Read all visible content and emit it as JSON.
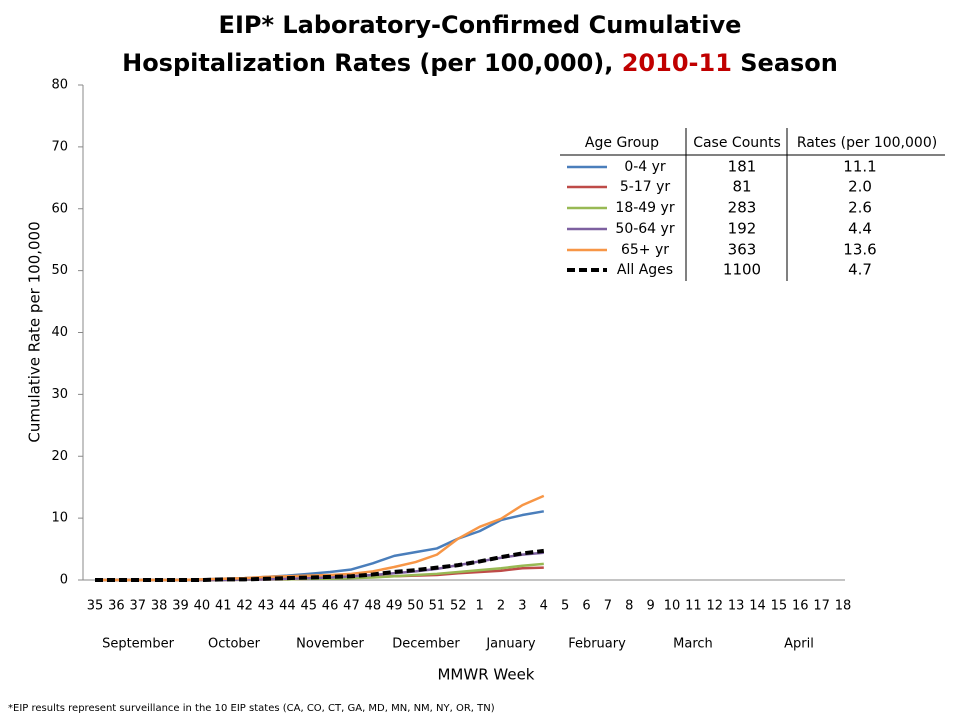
{
  "chart_data": {
    "type": "line",
    "title": [
      "EIP* Laboratory-Confirmed Cumulative",
      "Hospitalization Rates (per 100,000),",
      "2010-11",
      "Season"
    ],
    "title_highlight_color": "#c00000",
    "y_label": "Cumulative Rate per 100,000",
    "x_label": "MMWR Week",
    "footnote": "*EIP results represent surveillance in the 10 EIP states (CA, CO, CT, GA, MD, MN, NM, NY, OR, TN)",
    "categories": [
      "35",
      "36",
      "37",
      "38",
      "39",
      "40",
      "41",
      "42",
      "43",
      "44",
      "45",
      "46",
      "47",
      "48",
      "49",
      "50",
      "51",
      "52",
      "1",
      "2",
      "3",
      "4",
      "5",
      "6",
      "7",
      "8",
      "9",
      "10",
      "11",
      "12",
      "13",
      "14",
      "15",
      "16",
      "17",
      "18"
    ],
    "months": [
      "September",
      "October",
      "November",
      "December",
      "January",
      "February",
      "March",
      "April"
    ],
    "ylim": [
      0,
      80
    ],
    "yticks": [
      0,
      10,
      20,
      30,
      40,
      50,
      60,
      70,
      80
    ],
    "series": [
      {
        "name": "0-4 yr",
        "color": "#4a7ebb",
        "dashed": false,
        "values": [
          0,
          0,
          0,
          0,
          0,
          0.1,
          0.2,
          0.3,
          0.5,
          0.7,
          1.0,
          1.3,
          1.7,
          2.7,
          3.9,
          4.5,
          5.1,
          6.7,
          7.9,
          9.7,
          10.5,
          11.1,
          null,
          null,
          null,
          null,
          null,
          null,
          null,
          null,
          null,
          null,
          null,
          null,
          null,
          null
        ]
      },
      {
        "name": "5-17 yr",
        "color": "#be4b48",
        "dashed": false,
        "values": [
          0,
          0,
          0,
          0,
          0,
          0,
          0,
          0.05,
          0.1,
          0.1,
          0.2,
          0.3,
          0.4,
          0.5,
          0.6,
          0.7,
          0.8,
          1.1,
          1.3,
          1.5,
          1.9,
          2.0,
          null,
          null,
          null,
          null,
          null,
          null,
          null,
          null,
          null,
          null,
          null,
          null,
          null,
          null
        ]
      },
      {
        "name": "18-49 yr",
        "color": "#98b954",
        "dashed": false,
        "values": [
          0,
          0,
          0,
          0,
          0,
          0,
          0,
          0.05,
          0.1,
          0.1,
          0.2,
          0.2,
          0.3,
          0.4,
          0.6,
          0.8,
          1.0,
          1.3,
          1.6,
          1.9,
          2.3,
          2.6,
          null,
          null,
          null,
          null,
          null,
          null,
          null,
          null,
          null,
          null,
          null,
          null,
          null,
          null
        ]
      },
      {
        "name": "50-64 yr",
        "color": "#7d60a0",
        "dashed": false,
        "values": [
          0,
          0,
          0,
          0,
          0,
          0,
          0,
          0.1,
          0.1,
          0.2,
          0.3,
          0.4,
          0.6,
          0.8,
          1.1,
          1.4,
          1.8,
          2.4,
          3.0,
          3.6,
          4.1,
          4.4,
          null,
          null,
          null,
          null,
          null,
          null,
          null,
          null,
          null,
          null,
          null,
          null,
          null,
          null
        ]
      },
      {
        "name": "65+ yr",
        "color": "#f79646",
        "dashed": false,
        "values": [
          0,
          0,
          0,
          0,
          0,
          0.1,
          0.2,
          0.3,
          0.5,
          0.6,
          0.7,
          0.8,
          1.0,
          1.4,
          2.1,
          2.9,
          4.1,
          6.7,
          8.6,
          9.9,
          12.1,
          13.6,
          null,
          null,
          null,
          null,
          null,
          null,
          null,
          null,
          null,
          null,
          null,
          null,
          null,
          null
        ]
      },
      {
        "name": "All Ages",
        "color": "#000000",
        "dashed": true,
        "values": [
          0,
          0,
          0,
          0,
          0,
          0,
          0.1,
          0.1,
          0.2,
          0.3,
          0.4,
          0.5,
          0.6,
          0.9,
          1.3,
          1.6,
          2.0,
          2.4,
          3.0,
          3.7,
          4.3,
          4.7,
          null,
          null,
          null,
          null,
          null,
          null,
          null,
          null,
          null,
          null,
          null,
          null,
          null,
          null
        ]
      }
    ],
    "legend_table": {
      "headers": [
        "Age Group",
        "Case Counts",
        "Rates (per 100,000)"
      ],
      "rows": [
        [
          "181",
          "11.1"
        ],
        [
          "81",
          "2.0"
        ],
        [
          "283",
          "2.6"
        ],
        [
          "192",
          "4.4"
        ],
        [
          "363",
          "13.6"
        ],
        [
          "1100",
          "4.7"
        ]
      ]
    }
  }
}
